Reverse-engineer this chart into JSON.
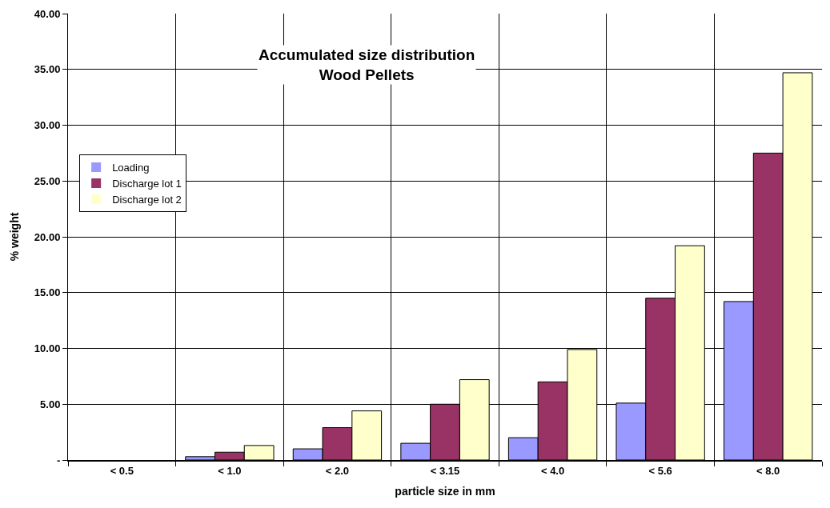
{
  "chart_data": {
    "type": "bar",
    "title": "Accumulated size distribution\nWood Pellets",
    "xlabel": "particle size in mm",
    "ylabel": "% weight",
    "categories": [
      "< 0.5",
      "< 1.0",
      "< 2.0",
      "< 3.15",
      "< 4.0",
      "< 5.6",
      "< 8.0"
    ],
    "series": [
      {
        "name": "Loading",
        "color": "#9999ff",
        "values": [
          0,
          0.3,
          1.0,
          1.5,
          2.0,
          5.1,
          14.2
        ]
      },
      {
        "name": "Discharge lot 1",
        "color": "#993366",
        "values": [
          0,
          0.7,
          2.9,
          5.0,
          7.0,
          14.5,
          27.5
        ]
      },
      {
        "name": "Discharge lot 2",
        "color": "#ffffcc",
        "values": [
          0,
          1.3,
          4.4,
          7.2,
          9.9,
          19.2,
          34.7
        ]
      }
    ],
    "ylim": [
      0,
      40
    ],
    "yticks": [
      {
        "value": 0,
        "label": "-"
      },
      {
        "value": 5,
        "label": "5.00"
      },
      {
        "value": 10,
        "label": "10.00"
      },
      {
        "value": 15,
        "label": "15.00"
      },
      {
        "value": 20,
        "label": "20.00"
      },
      {
        "value": 25,
        "label": "25.00"
      },
      {
        "value": 30,
        "label": "30.00"
      },
      {
        "value": 35,
        "label": "35.00"
      },
      {
        "value": 40,
        "label": "40.00"
      }
    ],
    "grid": true,
    "legend": "left"
  }
}
